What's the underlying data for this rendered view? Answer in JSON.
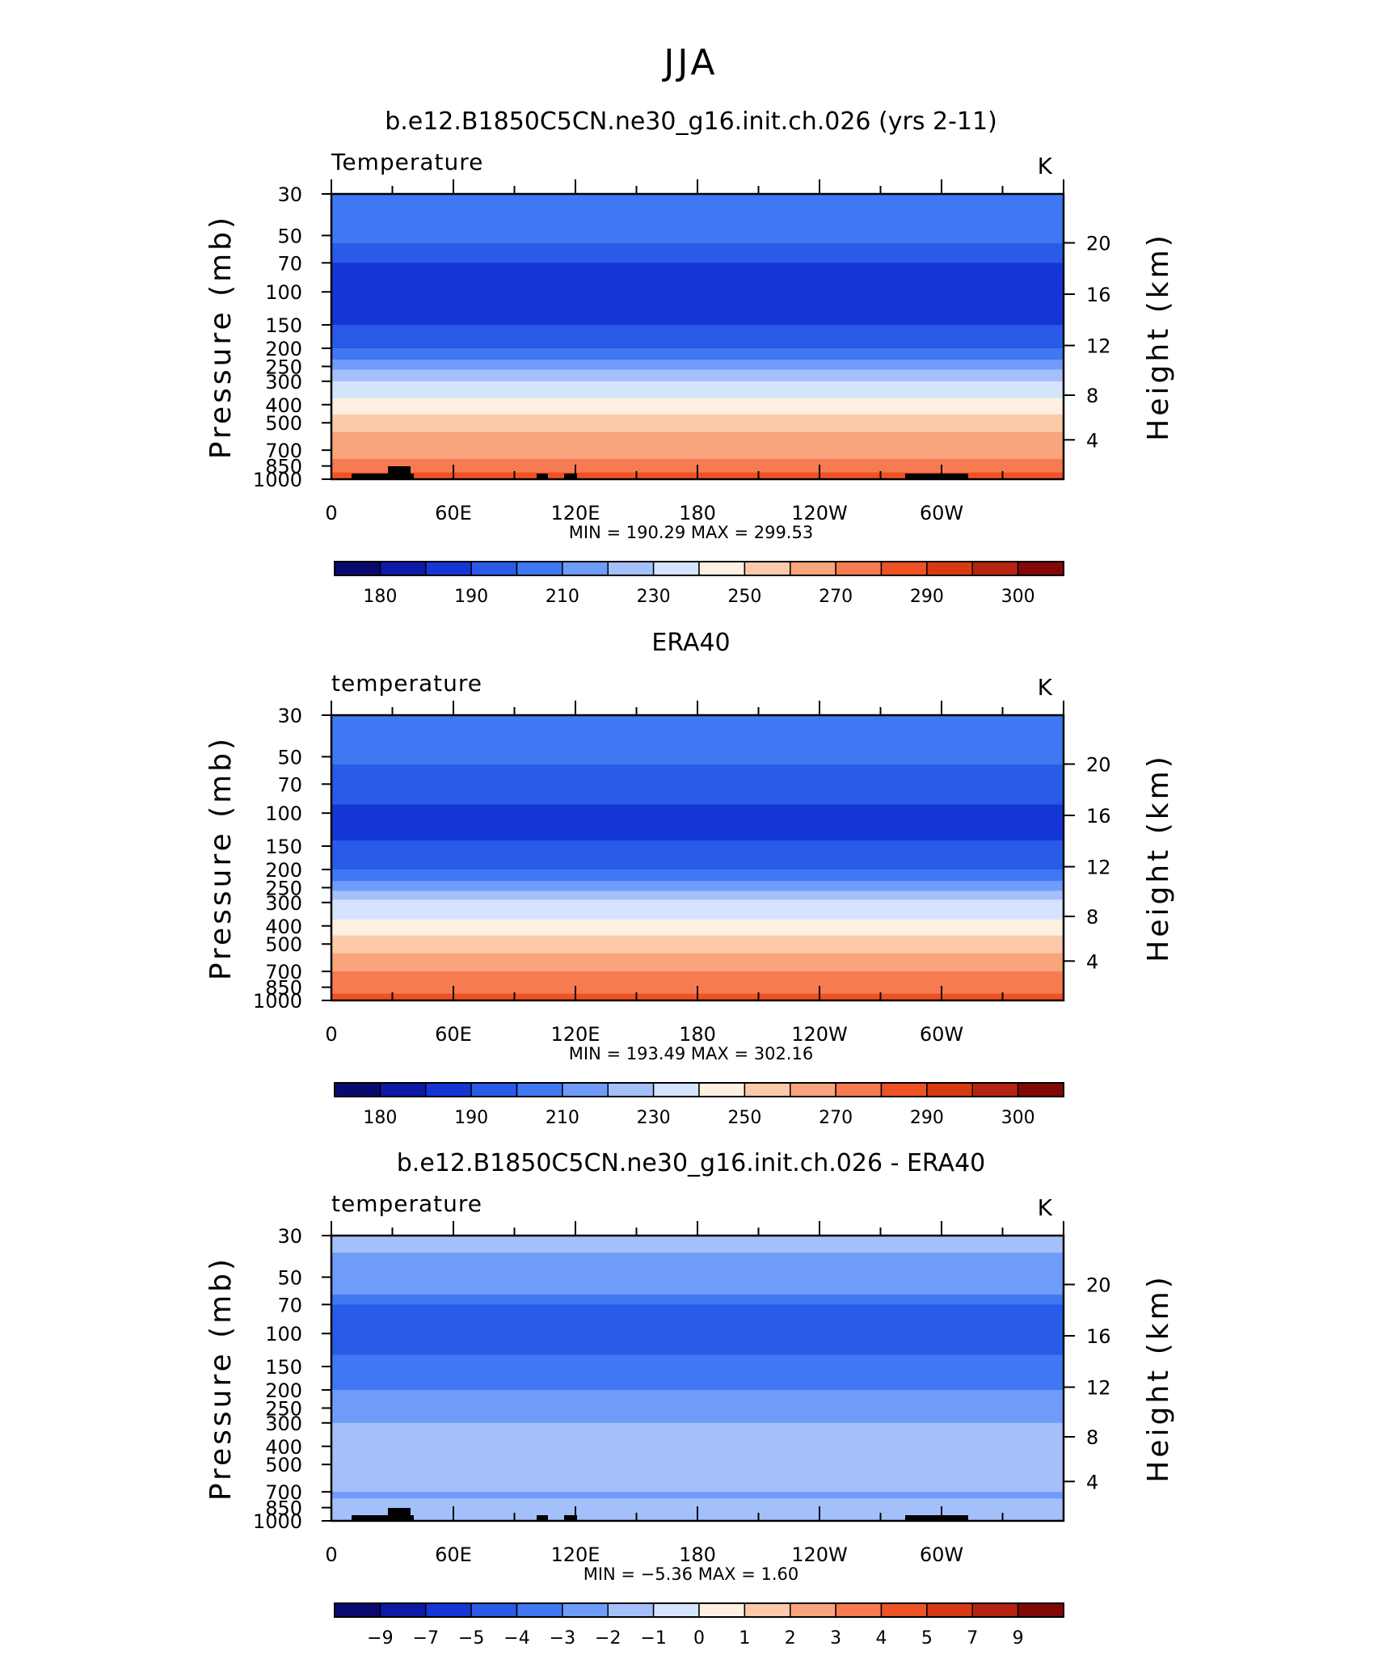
{
  "suptitle": "JJA",
  "chart_data": [
    {
      "type": "heatmap",
      "title": "b.e12.B1850C5CN.ne30_g16.init.ch.026 (yrs 2-11)",
      "variable": "Temperature",
      "units": "K",
      "ylabel": "Pressure (mb)",
      "ylabel_right": "Height (km)",
      "x_ticklabels": [
        "0",
        "60E",
        "120E",
        "180",
        "120W",
        "60W"
      ],
      "y_ticklabels": [
        "30",
        "50",
        "70",
        "100",
        "150",
        "200",
        "250",
        "300",
        "400",
        "500",
        "700",
        "850",
        "1000"
      ],
      "y_right_ticklabels": [
        "20",
        "16",
        "12",
        "8",
        "4"
      ],
      "y_log_scale": true,
      "ylim": [
        1000,
        30
      ],
      "minmax_text": "MIN = 190.29   MAX = 299.53",
      "colorbar_labels": [
        "180",
        "190",
        "210",
        "230",
        "250",
        "270",
        "290",
        "300"
      ],
      "colorbar_colors": [
        "#0a0a6e",
        "#0c1aa6",
        "#1536d6",
        "#2a5ae8",
        "#3f78f2",
        "#6f9cf8",
        "#a4c0fb",
        "#d4e4fd",
        "#fdf0e0",
        "#fccaa8",
        "#f9a47c",
        "#f77b50",
        "#ef5225",
        "#d63a12",
        "#b52410",
        "#820808"
      ],
      "profile": {
        "pressure": [
          30,
          42,
          55,
          62,
          70,
          100,
          130,
          150,
          170,
          200,
          230,
          260,
          300,
          330,
          370,
          400,
          450,
          500,
          560,
          620,
          700,
          780,
          850,
          920,
          1000
        ],
        "temperature": [
          214,
          214,
          205,
          205,
          195,
          195,
          195,
          205,
          205,
          215,
          225,
          235,
          245,
          245,
          255,
          255,
          265,
          265,
          275,
          275,
          275,
          285,
          285,
          295,
          295
        ]
      }
    },
    {
      "type": "heatmap",
      "title": "ERA40",
      "variable": "temperature",
      "units": "K",
      "ylabel": "Pressure (mb)",
      "ylabel_right": "Height (km)",
      "x_ticklabels": [
        "0",
        "60E",
        "120E",
        "180",
        "120W",
        "60W"
      ],
      "y_ticklabels": [
        "30",
        "50",
        "70",
        "100",
        "150",
        "200",
        "250",
        "300",
        "400",
        "500",
        "700",
        "850",
        "1000"
      ],
      "y_right_ticklabels": [
        "20",
        "16",
        "12",
        "8",
        "4"
      ],
      "y_log_scale": true,
      "ylim": [
        1000,
        30
      ],
      "minmax_text": "MIN = 193.49   MAX = 302.16",
      "colorbar_labels": [
        "180",
        "190",
        "210",
        "230",
        "250",
        "270",
        "290",
        "300"
      ],
      "colorbar_colors": [
        "#0a0a6e",
        "#0c1aa6",
        "#1536d6",
        "#2a5ae8",
        "#3f78f2",
        "#6f9cf8",
        "#a4c0fb",
        "#d4e4fd",
        "#fdf0e0",
        "#fccaa8",
        "#f9a47c",
        "#f77b50",
        "#ef5225",
        "#d63a12",
        "#b52410",
        "#820808"
      ],
      "profile": {
        "pressure": [
          30,
          42,
          55,
          62,
          70,
          90,
          115,
          140,
          170,
          200,
          230,
          260,
          290,
          330,
          370,
          400,
          450,
          500,
          560,
          620,
          700,
          780,
          850,
          920,
          1000
        ],
        "temperature": [
          214,
          214,
          205,
          205,
          205,
          195,
          195,
          205,
          205,
          215,
          225,
          235,
          245,
          245,
          255,
          255,
          265,
          265,
          275,
          275,
          285,
          285,
          285,
          295,
          295
        ]
      }
    },
    {
      "type": "heatmap",
      "title": "b.e12.B1850C5CN.ne30_g16.init.ch.026 - ERA40",
      "variable": "temperature",
      "units": "K",
      "ylabel": "Pressure (mb)",
      "ylabel_right": "Height (km)",
      "x_ticklabels": [
        "0",
        "60E",
        "120E",
        "180",
        "120W",
        "60W"
      ],
      "y_ticklabels": [
        "30",
        "50",
        "70",
        "100",
        "150",
        "200",
        "250",
        "300",
        "400",
        "500",
        "700",
        "850",
        "1000"
      ],
      "y_right_ticklabels": [
        "20",
        "16",
        "12",
        "8",
        "4"
      ],
      "y_log_scale": true,
      "ylim": [
        1000,
        30
      ],
      "minmax_text": "MIN =   −5.36   MAX =     1.60",
      "colorbar_labels": [
        "−9",
        "−7",
        "−5",
        "−4",
        "−3",
        "−2",
        "−1",
        "0",
        "1",
        "2",
        "3",
        "4",
        "5",
        "7",
        "9"
      ],
      "colorbar_colors": [
        "#0a0a6e",
        "#0c1aa6",
        "#1536d6",
        "#2a5ae8",
        "#3f78f2",
        "#6f9cf8",
        "#a4c0fb",
        "#d4e4fd",
        "#fdf0e0",
        "#fccaa8",
        "#f9a47c",
        "#f77b50",
        "#ef5225",
        "#d63a12",
        "#b52410",
        "#820808"
      ],
      "profile": {
        "pressure": [
          30,
          37,
          45,
          55,
          62,
          70,
          100,
          130,
          160,
          200,
          250,
          300,
          400,
          500,
          600,
          700,
          760,
          820,
          880,
          1000
        ],
        "temperature": [
          -1.5,
          -2.5,
          -2.5,
          -2.5,
          -3.5,
          -4.5,
          -4.5,
          -3.5,
          -3.5,
          -2.5,
          -2.5,
          -1.5,
          -1.5,
          -1.5,
          -1.5,
          -2.5,
          -1.5,
          -1.5,
          -1.5,
          -1.5
        ]
      }
    }
  ]
}
